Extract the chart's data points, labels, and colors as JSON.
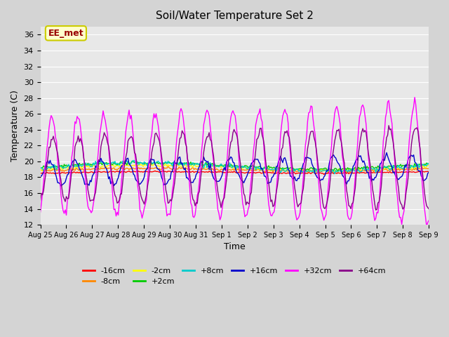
{
  "title": "Soil/Water Temperature Set 2",
  "xlabel": "Time",
  "ylabel": "Temperature (C)",
  "ylim": [
    12,
    37
  ],
  "yticks": [
    12,
    14,
    16,
    18,
    20,
    22,
    24,
    26,
    28,
    30,
    32,
    34,
    36
  ],
  "annotation_text": "EE_met",
  "annotation_bg": "#ffffcc",
  "annotation_border": "#cccc00",
  "annotation_text_color": "#990000",
  "series": [
    {
      "label": "-16cm",
      "color": "#ff0000"
    },
    {
      "label": "-8cm",
      "color": "#ff8800"
    },
    {
      "label": "-2cm",
      "color": "#ffff00"
    },
    {
      "label": "+2cm",
      "color": "#00cc00"
    },
    {
      "label": "+8cm",
      "color": "#00cccc"
    },
    {
      "label": "+16cm",
      "color": "#0000cc"
    },
    {
      "label": "+32cm",
      "color": "#ff00ff"
    },
    {
      "label": "+64cm",
      "color": "#880088"
    }
  ],
  "x_tick_labels": [
    "Aug 25",
    "Aug 26",
    "Aug 27",
    "Aug 28",
    "Aug 29",
    "Aug 30",
    "Aug 31",
    "Sep 1",
    "Sep 2",
    "Sep 3",
    "Sep 4",
    "Sep 5",
    "Sep 6",
    "Sep 7",
    "Sep 8",
    "Sep 9"
  ],
  "n_days": 15
}
